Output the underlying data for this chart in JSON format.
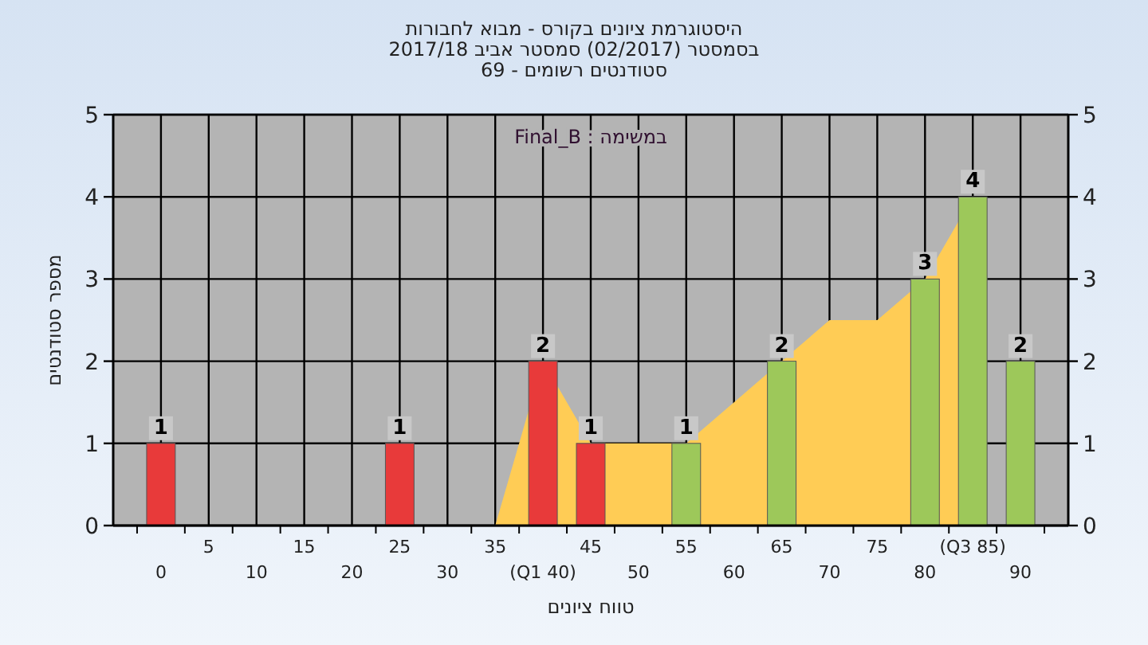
{
  "chart_data": {
    "type": "bar",
    "title": "היסטוגרמת ציונים בקורס - מבוא לחבורות",
    "subtitle": "בסמסטר (02/2017) סמסטר אביב 2017/18",
    "annotations": [
      "סטודנטים רשומים - 69",
      "במשימה : Final_B"
    ],
    "xlabel": "טווח ציונים",
    "ylabel": "מספר סטודנטים",
    "categories": [
      "0",
      "5",
      "10",
      "15",
      "20",
      "25",
      "30",
      "35",
      "(Q1 40)",
      "45",
      "50",
      "55",
      "60",
      "65",
      "70",
      "75",
      "80",
      "(Q3 85)",
      "90"
    ],
    "series": [
      {
        "type": "area",
        "color": "#ffcc55",
        "values": [
          null,
          null,
          null,
          null,
          null,
          null,
          null,
          0,
          2,
          1,
          1,
          1,
          1.5,
          2,
          2.5,
          2.5,
          3,
          4,
          null
        ]
      },
      {
        "type": "bar",
        "colors": [
          "#e83a3a",
          null,
          null,
          null,
          null,
          "#e83a3a",
          null,
          null,
          "#e83a3a",
          "#e83a3a",
          null,
          "#9dc85a",
          null,
          "#9dc85a",
          null,
          null,
          "#9dc85a",
          "#9dc85a",
          "#9dc85a"
        ],
        "values": [
          1,
          null,
          null,
          null,
          null,
          1,
          null,
          null,
          2,
          1,
          null,
          1,
          null,
          2,
          null,
          null,
          3,
          4,
          2
        ],
        "value_labels": [
          "1",
          null,
          null,
          null,
          null,
          "1",
          null,
          null,
          "2",
          "1",
          null,
          "1",
          null,
          "2",
          null,
          null,
          "3",
          "4",
          "2"
        ]
      }
    ],
    "ylim": [
      0,
      5
    ],
    "yticks": [
      0,
      1,
      2,
      3,
      4,
      5
    ],
    "y2lim": [
      0,
      5
    ],
    "y2ticks": [
      0,
      1,
      2,
      3,
      4,
      5
    ],
    "grid": true
  }
}
